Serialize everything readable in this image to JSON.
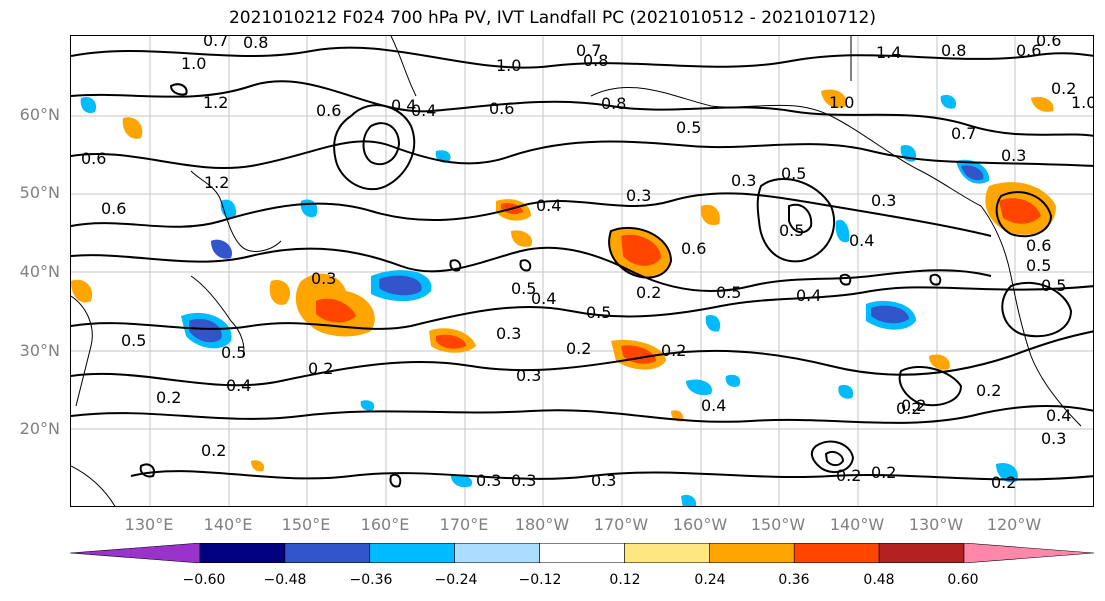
{
  "title": "2021010212 F024 700 hPa PV, IVT Landfall PC (2021010512 - 2021010712)",
  "lat_labels": [
    "60°N",
    "50°N",
    "40°N",
    "30°N",
    "20°N"
  ],
  "lon_labels": [
    "130°E",
    "140°E",
    "150°E",
    "160°E",
    "170°E",
    "180°W",
    "170°W",
    "160°W",
    "150°W",
    "140°W",
    "130°W",
    "120°W"
  ],
  "colorbar": {
    "colors": [
      "#9933cc",
      "#000080",
      "#3355cc",
      "#00bbff",
      "#aaddff",
      "#ffffff",
      "#ffe680",
      "#ffa500",
      "#ff4500",
      "#b22222",
      "#ff88aa"
    ],
    "tick_labels": [
      "−0.60",
      "−0.48",
      "−0.36",
      "−0.24",
      "−0.12",
      "0.12",
      "0.24",
      "0.36",
      "0.48",
      "0.60"
    ]
  },
  "contour_labels": [
    "0.7",
    "0.8",
    "1.0",
    "1.2",
    "0.6",
    "1.2",
    "0.6",
    "0.6",
    "0.4",
    "0.5",
    "0.3",
    "0.2",
    "0.4",
    "0.2",
    "0.5",
    "0.4",
    "0.5",
    "0.2",
    "0.3",
    "0.5",
    "0.3",
    "0.4",
    "0.5",
    "0.6",
    "0.3",
    "0.2",
    "0.2",
    "0.3",
    "0.7",
    "0.8",
    "1.0",
    "0.8",
    "0.6",
    "0.5",
    "0.3",
    "0.5",
    "0.4",
    "0.2",
    "0.5",
    "0.2",
    "0.3",
    "1.4",
    "1.0",
    "0.7",
    "0.6",
    "0.3",
    "0.5",
    "0.6",
    "0.4",
    "0.2",
    "0.3",
    "0.2",
    "0.2",
    "0.4",
    "0.2",
    "1.0",
    "0.4",
    "0.3",
    "0.4",
    "0.5",
    "0.8",
    "0.6",
    "0.3",
    "0.2",
    "0.2"
  ]
}
